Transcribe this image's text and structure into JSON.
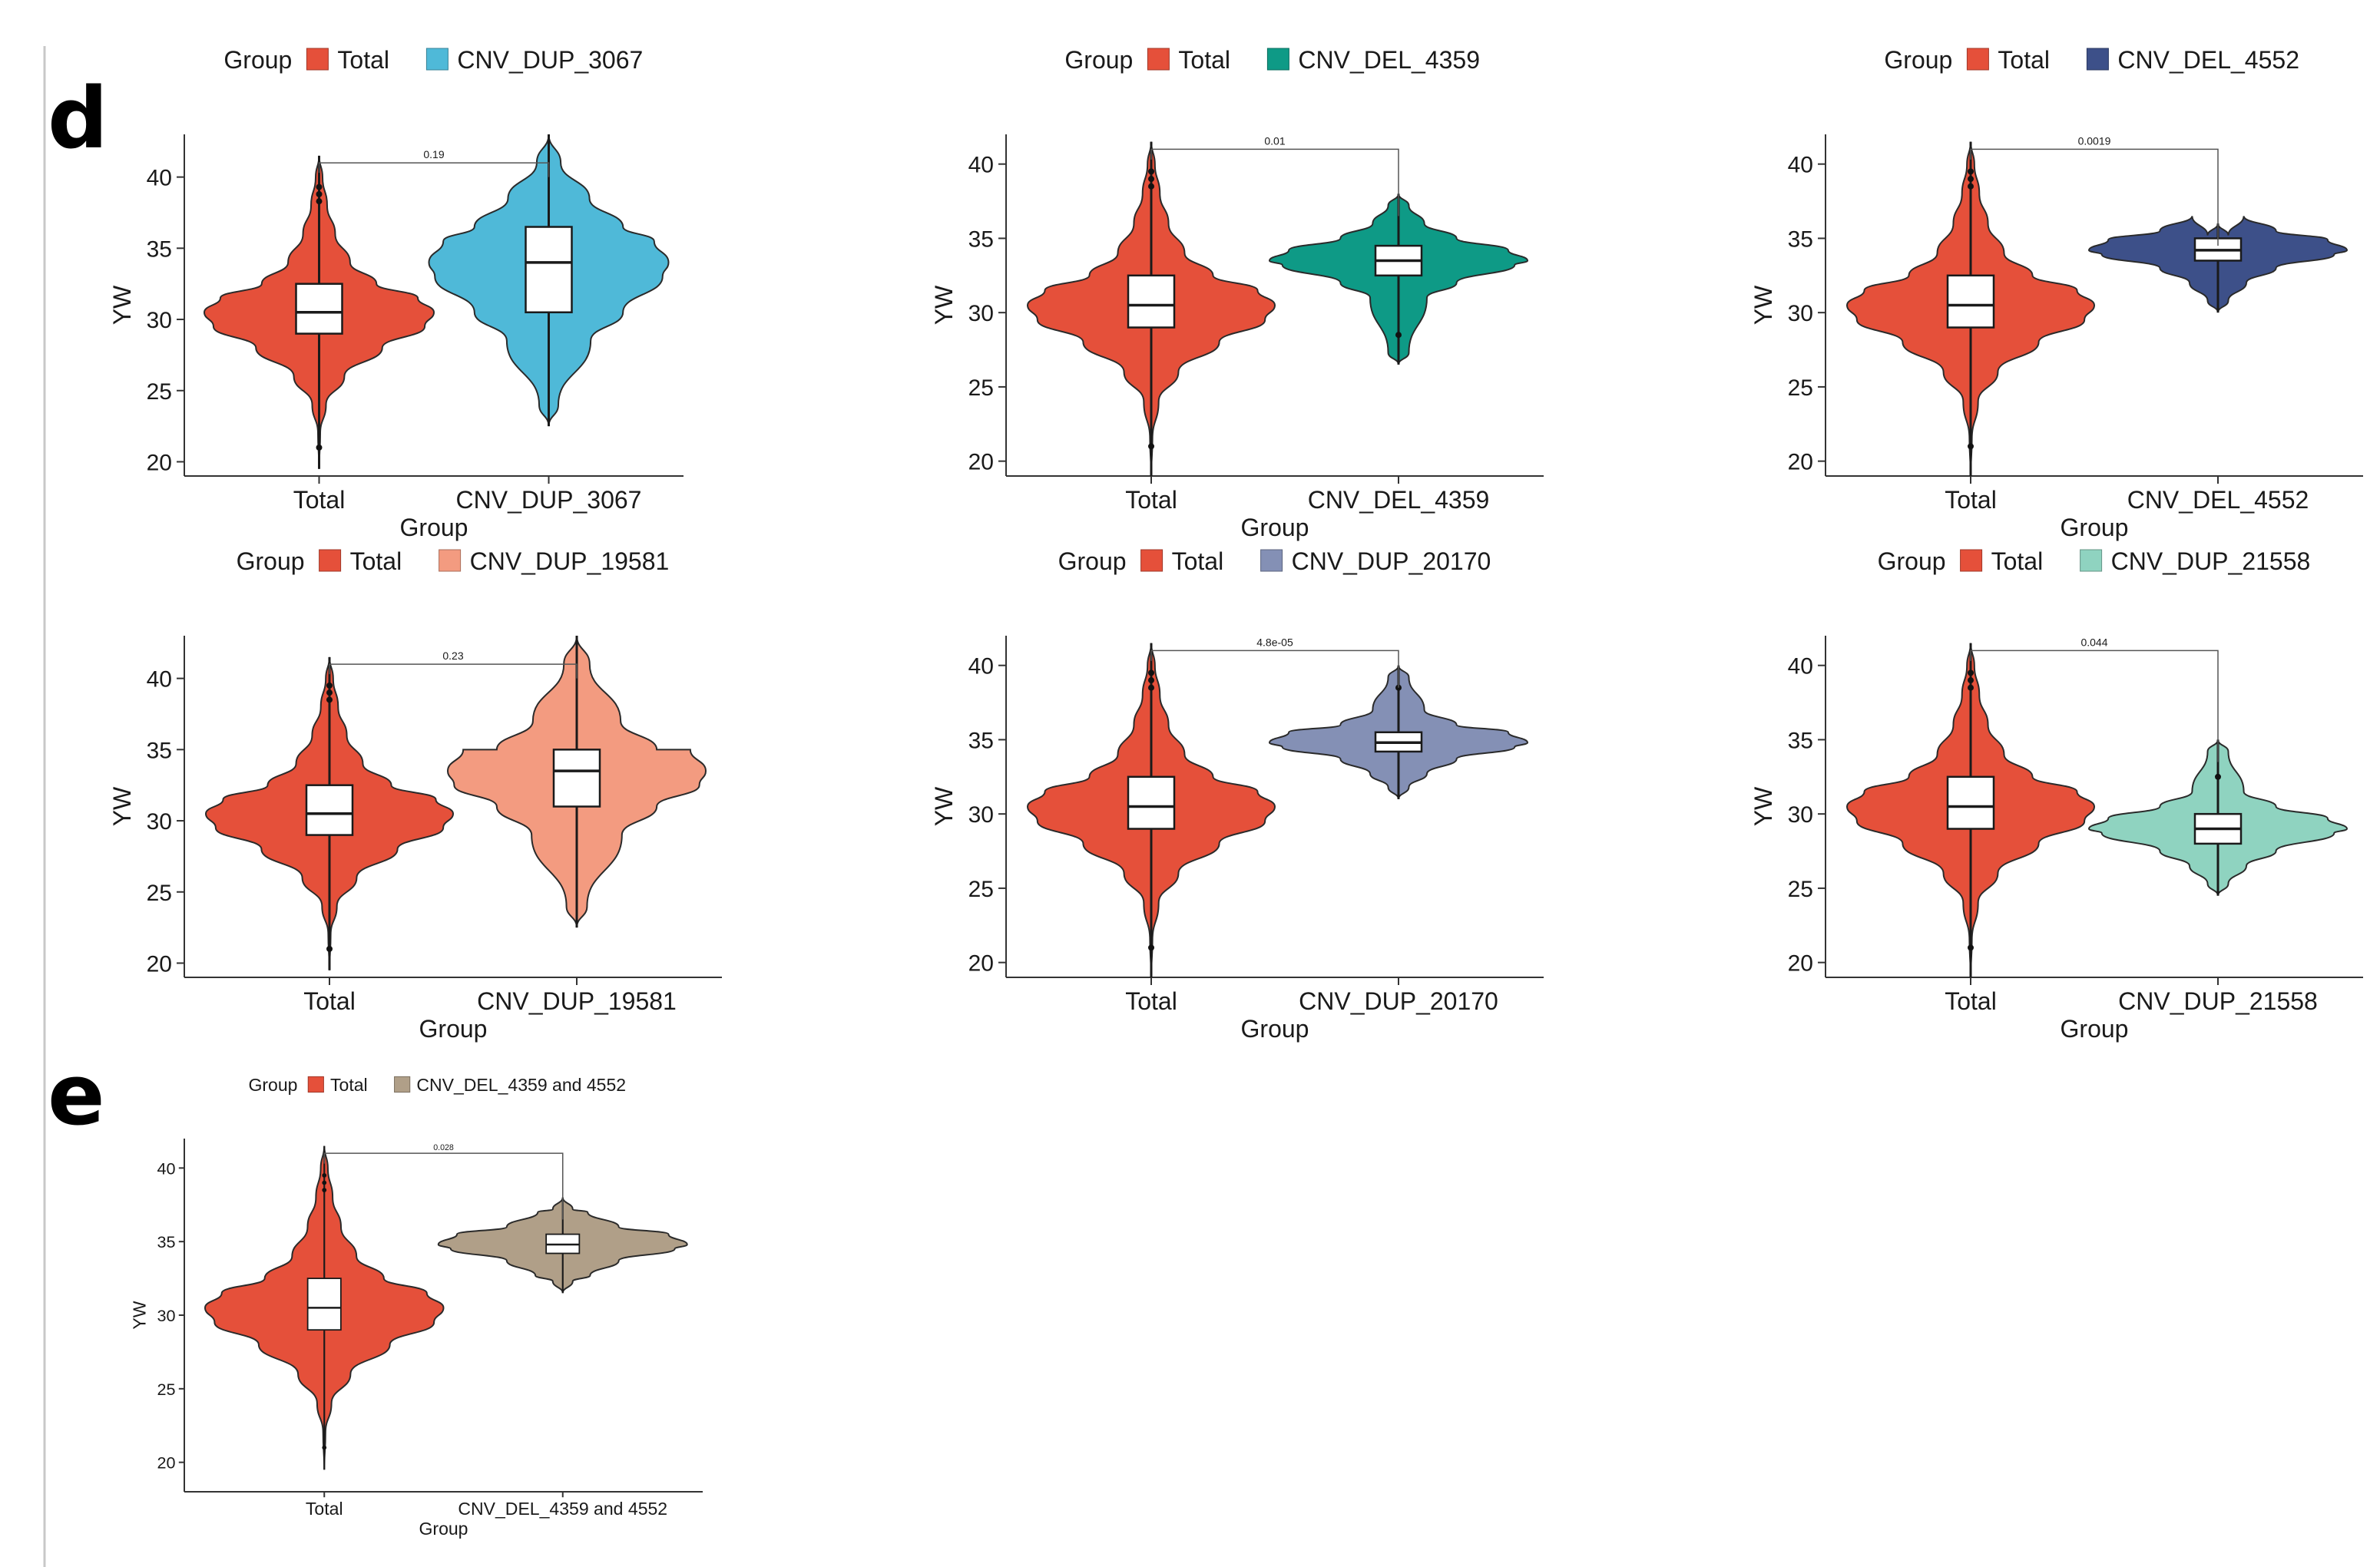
{
  "panel_labels": [
    "d",
    "e"
  ],
  "chart_data": [
    {
      "type": "violin",
      "panel": "d",
      "legend_title": "Group",
      "legend_placement": "top",
      "xlabel": "Group",
      "ylabel": "YW",
      "ylim": [
        19,
        43
      ],
      "yticks": [
        20,
        25,
        30,
        35,
        40
      ],
      "categories": [
        "Total",
        "CNV_DUP_3067"
      ],
      "colors": [
        "#e5503a",
        "#4fb9d8"
      ],
      "p_value": "0.19",
      "groups": [
        {
          "name": "Total",
          "min": 19.5,
          "q1": 29,
          "median": 30.5,
          "q3": 32.5,
          "max": 41.5,
          "outliers": [
            21,
            38.3,
            38.8,
            39.3
          ]
        },
        {
          "name": "CNV_DUP_3067",
          "min": 22.5,
          "q1": 30.5,
          "median": 34,
          "q3": 36.5,
          "max": 43,
          "outliers": []
        }
      ]
    },
    {
      "type": "violin",
      "panel": "d",
      "legend_title": "Group",
      "legend_placement": "top",
      "xlabel": "Group",
      "ylabel": "YW",
      "ylim": [
        19,
        42
      ],
      "yticks": [
        20,
        25,
        30,
        35,
        40
      ],
      "categories": [
        "Total",
        "CNV_DEL_4359"
      ],
      "colors": [
        "#e5503a",
        "#0e9a86"
      ],
      "p_value": "0.01",
      "groups": [
        {
          "name": "Total",
          "min": 19,
          "q1": 29,
          "median": 30.5,
          "q3": 32.5,
          "max": 41.5,
          "outliers": [
            21,
            38.5,
            39,
            39.5
          ]
        },
        {
          "name": "CNV_DEL_4359",
          "min": 26.5,
          "q1": 32.5,
          "median": 33.5,
          "q3": 34.5,
          "max": 38,
          "outliers": [
            28.5
          ]
        }
      ]
    },
    {
      "type": "violin",
      "panel": "d",
      "legend_title": "Group",
      "legend_placement": "top",
      "xlabel": "Group",
      "ylabel": "YW",
      "ylim": [
        19,
        42
      ],
      "yticks": [
        20,
        25,
        30,
        35,
        40
      ],
      "categories": [
        "Total",
        "CNV_DEL_4552"
      ],
      "colors": [
        "#e5503a",
        "#3d5089"
      ],
      "p_value": "0.0019",
      "groups": [
        {
          "name": "Total",
          "min": 19,
          "q1": 29,
          "median": 30.5,
          "q3": 32.5,
          "max": 41.5,
          "outliers": [
            21,
            38.5,
            39,
            39.5
          ]
        },
        {
          "name": "CNV_DEL_4552",
          "min": 30,
          "q1": 33.5,
          "median": 34.2,
          "q3": 35,
          "max": 36,
          "outliers": []
        }
      ]
    },
    {
      "type": "violin",
      "panel": "d",
      "legend_title": "Group",
      "legend_placement": "top",
      "xlabel": "Group",
      "ylabel": "YW",
      "ylim": [
        19,
        43
      ],
      "yticks": [
        20,
        25,
        30,
        35,
        40
      ],
      "categories": [
        "Total",
        "CNV_DUP_19581"
      ],
      "colors": [
        "#e5503a",
        "#f39b80"
      ],
      "p_value": "0.23",
      "groups": [
        {
          "name": "Total",
          "min": 19.5,
          "q1": 29,
          "median": 30.5,
          "q3": 32.5,
          "max": 41.5,
          "outliers": [
            21,
            38.5,
            39,
            39.5
          ]
        },
        {
          "name": "CNV_DUP_19581",
          "min": 22.5,
          "q1": 31,
          "median": 33.5,
          "q3": 35,
          "max": 43,
          "outliers": []
        }
      ]
    },
    {
      "type": "violin",
      "panel": "d",
      "legend_title": "Group",
      "legend_placement": "top",
      "xlabel": "Group",
      "ylabel": "YW",
      "ylim": [
        19,
        42
      ],
      "yticks": [
        20,
        25,
        30,
        35,
        40
      ],
      "categories": [
        "Total",
        "CNV_DUP_20170"
      ],
      "colors": [
        "#e5503a",
        "#8490b5"
      ],
      "p_value": "4.8e-05",
      "groups": [
        {
          "name": "Total",
          "min": 19,
          "q1": 29,
          "median": 30.5,
          "q3": 32.5,
          "max": 41.5,
          "outliers": [
            21,
            38.5,
            39,
            39.5
          ]
        },
        {
          "name": "CNV_DUP_20170",
          "min": 31,
          "q1": 34.2,
          "median": 34.8,
          "q3": 35.5,
          "max": 40,
          "outliers": [
            38.5
          ]
        }
      ]
    },
    {
      "type": "violin",
      "panel": "d",
      "legend_title": "Group",
      "legend_placement": "top",
      "xlabel": "Group",
      "ylabel": "YW",
      "ylim": [
        19,
        42
      ],
      "yticks": [
        20,
        25,
        30,
        35,
        40
      ],
      "categories": [
        "Total",
        "CNV_DUP_21558"
      ],
      "colors": [
        "#e5503a",
        "#8fd3c0"
      ],
      "p_value": "0.044",
      "groups": [
        {
          "name": "Total",
          "min": 19,
          "q1": 29,
          "median": 30.5,
          "q3": 32.5,
          "max": 41.5,
          "outliers": [
            21,
            38.5,
            39,
            39.5
          ]
        },
        {
          "name": "CNV_DUP_21558",
          "min": 24.5,
          "q1": 28,
          "median": 29,
          "q3": 30,
          "max": 35,
          "outliers": [
            32.5
          ]
        }
      ]
    },
    {
      "type": "violin",
      "panel": "e",
      "legend_title": "Group",
      "legend_placement": "top",
      "xlabel": "Group",
      "ylabel": "YW",
      "ylim": [
        18,
        42
      ],
      "yticks": [
        20,
        25,
        30,
        35,
        40
      ],
      "categories": [
        "Total",
        "CNV_DEL_4359 and 4552"
      ],
      "colors": [
        "#e5503a",
        "#b09f88"
      ],
      "p_value": "0.028",
      "groups": [
        {
          "name": "Total",
          "min": 19.5,
          "q1": 29,
          "median": 30.5,
          "q3": 32.5,
          "max": 41.5,
          "outliers": [
            21,
            38.5,
            39,
            39.5
          ]
        },
        {
          "name": "CNV_DEL_4359 and 4552",
          "min": 31.5,
          "q1": 34.2,
          "median": 34.8,
          "q3": 35.5,
          "max": 38,
          "outliers": []
        }
      ]
    }
  ]
}
